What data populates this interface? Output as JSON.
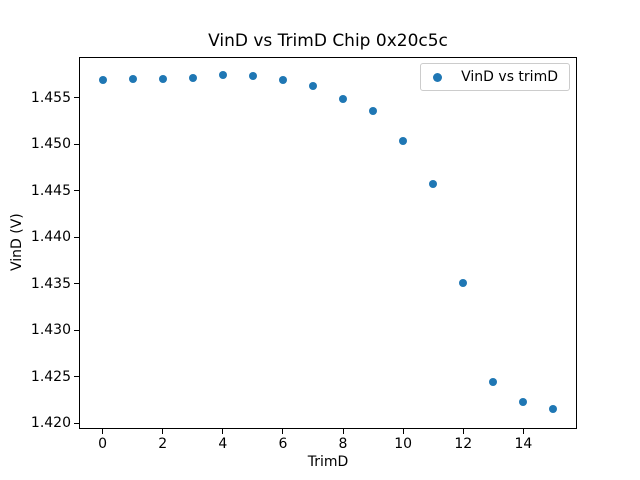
{
  "chart_data": {
    "type": "scatter",
    "title": "VinD vs TrimD Chip 0x20c5c",
    "xlabel": "TrimD",
    "ylabel": "VinD (V)",
    "legend_label": "VinD vs trimD",
    "legend_position": "upper right",
    "marker_color": "#1f77b4",
    "grid": false,
    "x": [
      0,
      1,
      2,
      3,
      4,
      5,
      6,
      7,
      8,
      9,
      10,
      11,
      12,
      13,
      14,
      15
    ],
    "y": [
      1.4569,
      1.457,
      1.457,
      1.4571,
      1.4575,
      1.4574,
      1.4569,
      1.4563,
      1.4549,
      1.4536,
      1.4504,
      1.4458,
      1.4351,
      1.4245,
      1.4223,
      1.4215
    ],
    "xlim": [
      -0.75,
      15.75
    ],
    "ylim": [
      1.4195,
      1.4593
    ],
    "xticks": [
      0,
      2,
      4,
      6,
      8,
      10,
      12,
      14
    ],
    "xtick_labels": [
      "0",
      "2",
      "4",
      "6",
      "8",
      "10",
      "12",
      "14"
    ],
    "yticks": [
      1.42,
      1.425,
      1.43,
      1.435,
      1.44,
      1.445,
      1.45,
      1.455
    ],
    "ytick_labels": [
      "1.420",
      "1.425",
      "1.430",
      "1.435",
      "1.440",
      "1.445",
      "1.450",
      "1.455"
    ]
  }
}
